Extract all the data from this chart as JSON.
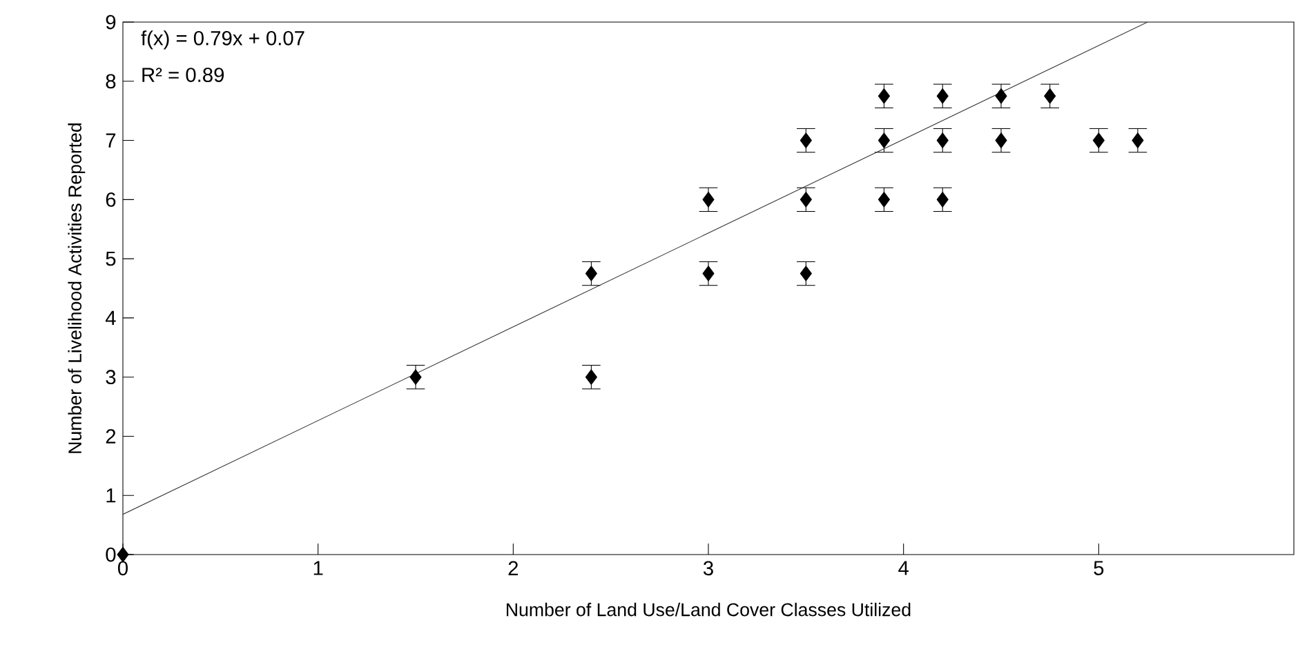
{
  "chart_data": {
    "type": "scatter",
    "xlabel": "Number of Land Use/Land Cover Classes Utilized",
    "ylabel": "Number of Livelihood Activities Reported",
    "annotations": [
      "f(x) = 0.79x + 0.07",
      "R² = 0.89"
    ],
    "series": [
      {
        "color": "#000000",
        "marker": "diamond",
        "x": [
          0,
          1.5,
          2.4,
          2.4,
          3,
          3,
          3.5,
          3.5,
          3.5,
          3.9,
          3.9,
          3.9,
          4.2,
          4.2,
          4.2,
          4.5,
          4.5,
          4.75,
          5,
          5.2
        ],
        "values": [
          0,
          3,
          4.75,
          3,
          6,
          4.75,
          7,
          6,
          4.75,
          7.75,
          7,
          6,
          7.75,
          7,
          6,
          7.75,
          7,
          7.75,
          7,
          7
        ],
        "errors": [
          null,
          0.2,
          0.2,
          0.2,
          0.2,
          0.2,
          0.2,
          0.2,
          0.2,
          0.2,
          0.2,
          0.2,
          0.2,
          0.2,
          0.2,
          0.2,
          0.2,
          0.2,
          0.2,
          0.2
        ]
      },
      {
        "type": "line",
        "color": "#333333",
        "marker": "none",
        "x": [
          0,
          5.25
        ],
        "values": [
          0.68,
          9
        ]
      }
    ],
    "xlim": [
      0,
      6
    ],
    "ylim": [
      0,
      9
    ],
    "xticks": [
      0,
      1,
      2,
      3,
      4,
      5
    ],
    "yticks": [
      0,
      1,
      2,
      3,
      4,
      5,
      6,
      7,
      8,
      9
    ]
  }
}
